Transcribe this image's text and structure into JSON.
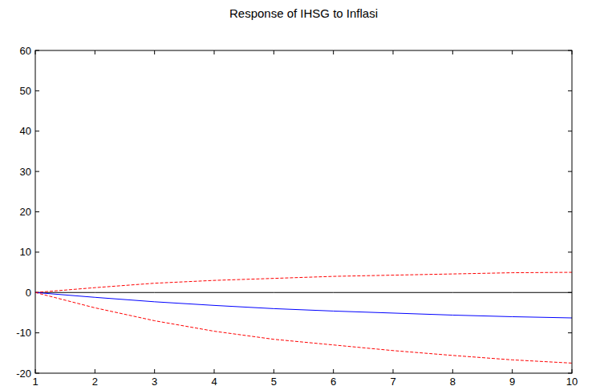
{
  "chart_data": {
    "type": "line",
    "title": "Response of IHSG to Inflasi",
    "x": [
      1,
      2,
      3,
      4,
      5,
      6,
      7,
      8,
      9,
      10
    ],
    "series": [
      {
        "color": "#000000",
        "line_style": "solid",
        "values": [
          0,
          0,
          0,
          0,
          0,
          0,
          0,
          0,
          0,
          0
        ]
      },
      {
        "color": "#ff0000",
        "line_style": "dashed",
        "values": [
          0,
          1.2,
          2.3,
          3.0,
          3.5,
          4.0,
          4.3,
          4.6,
          4.9,
          5.0
        ]
      },
      {
        "color": "#0000ff",
        "line_style": "solid",
        "values": [
          0,
          -1.2,
          -2.3,
          -3.2,
          -4.0,
          -4.6,
          -5.1,
          -5.6,
          -6.0,
          -6.3
        ]
      },
      {
        "color": "#ff0000",
        "line_style": "dashed",
        "values": [
          0,
          -3.8,
          -7.0,
          -9.6,
          -11.6,
          -13.0,
          -14.4,
          -15.6,
          -16.7,
          -17.5
        ]
      }
    ],
    "xlim": [
      1,
      10
    ],
    "xticks": [
      1,
      2,
      3,
      4,
      5,
      6,
      7,
      8,
      9,
      10
    ],
    "ylim": [
      -20,
      60
    ],
    "yticks": [
      -20,
      -10,
      0,
      10,
      20,
      30,
      40,
      50,
      60
    ],
    "grid": false
  }
}
